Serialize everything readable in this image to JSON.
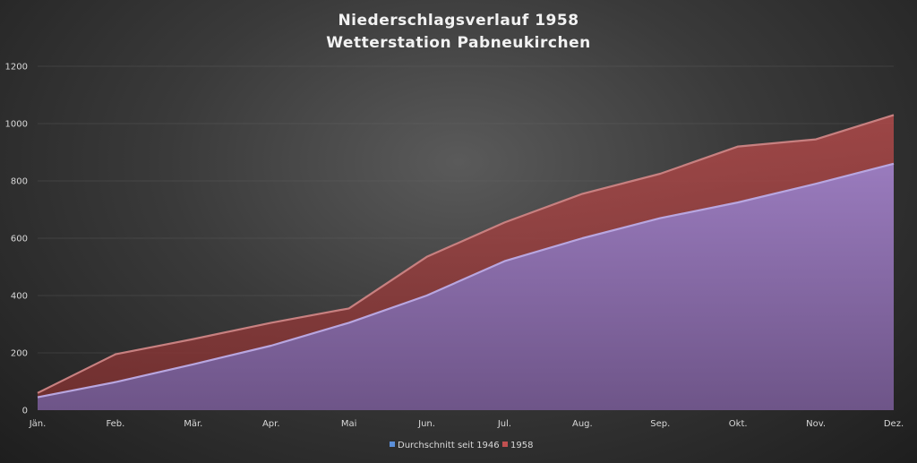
{
  "chart_data": {
    "type": "area",
    "title": "Niederschlagsverlauf 1958",
    "subtitle": "Wetterstation Pabneukirchen",
    "xlabel": "",
    "ylabel": "",
    "categories": [
      "Jän.",
      "Feb.",
      "Mär.",
      "Apr.",
      "Mai",
      "Jun.",
      "Jul.",
      "Aug.",
      "Sep.",
      "Okt.",
      "Nov.",
      "Dez."
    ],
    "ylim": [
      0,
      1200
    ],
    "yticks": [
      "0",
      "200",
      "400",
      "600",
      "800",
      "1000",
      "1200"
    ],
    "grid": true,
    "legend_position": "bottom",
    "series": [
      {
        "name": "1958",
        "color": "#a04848",
        "values": [
          60,
          195,
          248,
          305,
          355,
          535,
          655,
          755,
          825,
          920,
          945,
          1030
        ]
      },
      {
        "name": "Durchschnitt seit 1946",
        "color": "#8c73b8",
        "values": [
          45,
          98,
          160,
          225,
          305,
          400,
          520,
          600,
          670,
          725,
          790,
          860
        ]
      }
    ],
    "legend": [
      "Durchschnitt seit 1946",
      "1958"
    ]
  }
}
